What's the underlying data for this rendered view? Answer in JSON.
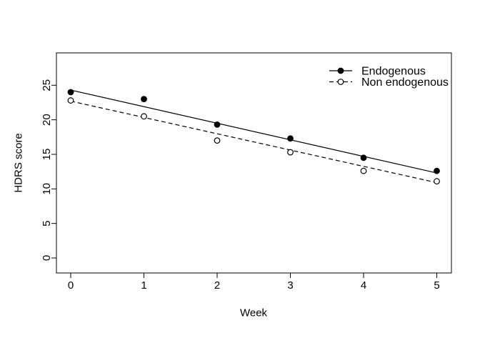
{
  "figure": {
    "background": "#ffffff",
    "foreground": "#000000"
  },
  "chart_data": {
    "type": "line",
    "title": "",
    "xlabel": "Week",
    "ylabel": "HDRS score",
    "x_ticks": [
      "0",
      "1",
      "2",
      "3",
      "4",
      "5"
    ],
    "y_ticks": [
      "0",
      "5",
      "10",
      "15",
      "20",
      "25"
    ],
    "xlim": [
      -0.2,
      5.2
    ],
    "ylim": [
      -2.2,
      29.7
    ],
    "grid": false,
    "legend": {
      "position": "top-right",
      "border": false,
      "entries": [
        "Endogenous",
        "Non endogenous"
      ]
    },
    "series": [
      {
        "name": "Endogenous",
        "marker": "filled-circle",
        "line_style": "solid",
        "color": "#000000",
        "x": [
          0,
          1,
          2,
          3,
          4,
          5
        ],
        "y": [
          24.0,
          23.0,
          19.3,
          17.3,
          14.5,
          12.6
        ],
        "fit_line": {
          "x": [
            0,
            5
          ],
          "y": [
            24.3,
            12.3
          ]
        }
      },
      {
        "name": "Non endogenous",
        "marker": "open-circle",
        "line_style": "dashed",
        "color": "#000000",
        "x": [
          0,
          1,
          2,
          3,
          4,
          5
        ],
        "y": [
          22.8,
          20.5,
          17.0,
          15.3,
          12.6,
          11.1
        ],
        "fit_line": {
          "x": [
            0,
            5
          ],
          "y": [
            22.7,
            10.9
          ]
        }
      }
    ]
  }
}
